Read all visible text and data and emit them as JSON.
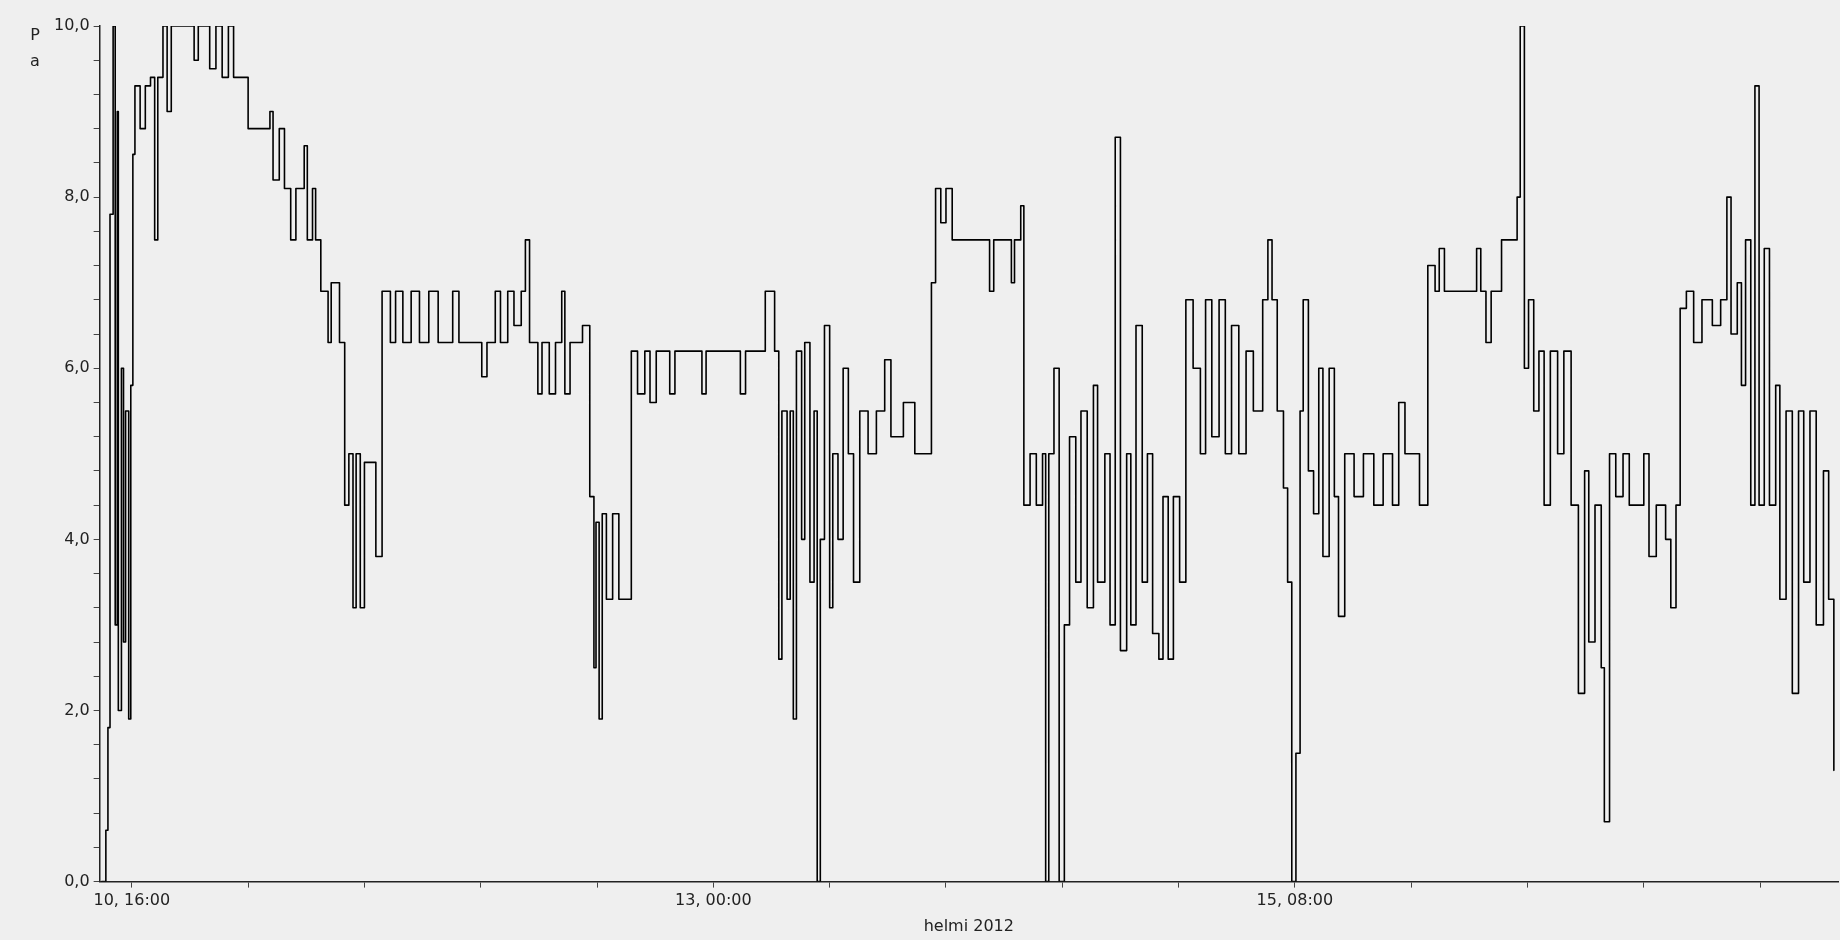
{
  "chart_data": {
    "type": "step",
    "xlabel": "helmi 2012",
    "ylabel": "Pa",
    "xlim": [
      "2012-02-10T12:54",
      "2012-02-17T12:18"
    ],
    "ylim": [
      0,
      10
    ],
    "xticks": [
      {
        "value": "2012-02-10T16:00",
        "label": "10, 16:00"
      },
      {
        "value": "2012-02-11T03:12",
        "label": null
      },
      {
        "value": "2012-02-11T14:24",
        "label": null
      },
      {
        "value": "2012-02-12T01:36",
        "label": null
      },
      {
        "value": "2012-02-12T12:48",
        "label": null
      },
      {
        "value": "2012-02-13T00:00",
        "label": "13, 00:00"
      },
      {
        "value": "2012-02-13T11:12",
        "label": null
      },
      {
        "value": "2012-02-13T22:24",
        "label": null
      },
      {
        "value": "2012-02-14T09:36",
        "label": null
      },
      {
        "value": "2012-02-14T20:48",
        "label": null
      },
      {
        "value": "2012-02-15T08:00",
        "label": "15, 08:00"
      },
      {
        "value": "2012-02-15T19:12",
        "label": null
      },
      {
        "value": "2012-02-16T06:24",
        "label": null
      },
      {
        "value": "2012-02-16T17:36",
        "label": null
      },
      {
        "value": "2012-02-17T04:48",
        "label": null
      }
    ],
    "yticks": [
      {
        "value": 0,
        "label": "0,0"
      },
      {
        "value": 0.4,
        "label": null
      },
      {
        "value": 0.8,
        "label": null
      },
      {
        "value": 1.2,
        "label": null
      },
      {
        "value": 1.6,
        "label": null
      },
      {
        "value": 2,
        "label": "2,0"
      },
      {
        "value": 2.4,
        "label": null
      },
      {
        "value": 2.8,
        "label": null
      },
      {
        "value": 3.2,
        "label": null
      },
      {
        "value": 3.6,
        "label": null
      },
      {
        "value": 4,
        "label": "4,0"
      },
      {
        "value": 4.4,
        "label": null
      },
      {
        "value": 4.8,
        "label": null
      },
      {
        "value": 5.2,
        "label": null
      },
      {
        "value": 5.6,
        "label": null
      },
      {
        "value": 6,
        "label": "6,0"
      },
      {
        "value": 6.4,
        "label": null
      },
      {
        "value": 6.8,
        "label": null
      },
      {
        "value": 7.2,
        "label": null
      },
      {
        "value": 7.6,
        "label": null
      },
      {
        "value": 8,
        "label": "8,0"
      },
      {
        "value": 8.4,
        "label": null
      },
      {
        "value": 8.8,
        "label": null
      },
      {
        "value": 9.2,
        "label": null
      },
      {
        "value": 9.6,
        "label": null
      },
      {
        "value": 10,
        "label": "10,0"
      }
    ],
    "grid": false,
    "legend": false,
    "marker": "none",
    "line_style": "solid",
    "series": [
      {
        "color": "#000000",
        "x": [
          "2012-02-10T13:06",
          "2012-02-10T13:30",
          "2012-02-10T13:42",
          "2012-02-10T13:54",
          "2012-02-10T14:12",
          "2012-02-10T14:24",
          "2012-02-10T14:36",
          "2012-02-10T14:42",
          "2012-02-10T15:00",
          "2012-02-10T15:12",
          "2012-02-10T15:24",
          "2012-02-10T15:42",
          "2012-02-10T15:54",
          "2012-02-10T16:06",
          "2012-02-10T16:18",
          "2012-02-10T16:48",
          "2012-02-10T17:18",
          "2012-02-10T17:48",
          "2012-02-10T18:12",
          "2012-02-10T18:30",
          "2012-02-10T19:00",
          "2012-02-10T19:24",
          "2012-02-10T19:48",
          "2012-02-10T22:00",
          "2012-02-10T22:24",
          "2012-02-10T23:30",
          "2012-02-11T00:06",
          "2012-02-11T00:42",
          "2012-02-11T01:18",
          "2012-02-11T01:48",
          "2012-02-11T03:12",
          "2012-02-11T05:18",
          "2012-02-11T05:36",
          "2012-02-11T06:12",
          "2012-02-11T06:42",
          "2012-02-11T07:18",
          "2012-02-11T07:48",
          "2012-02-11T08:36",
          "2012-02-11T08:54",
          "2012-02-11T09:24",
          "2012-02-11T09:42",
          "2012-02-11T10:12",
          "2012-02-11T10:54",
          "2012-02-11T11:12",
          "2012-02-11T12:00",
          "2012-02-11T12:30",
          "2012-02-11T12:54",
          "2012-02-11T13:18",
          "2012-02-11T13:36",
          "2012-02-11T14:00",
          "2012-02-11T14:24",
          "2012-02-11T15:30",
          "2012-02-11T16:06",
          "2012-02-11T16:54",
          "2012-02-11T17:24",
          "2012-02-11T18:06",
          "2012-02-11T18:54",
          "2012-02-11T19:42",
          "2012-02-11T20:36",
          "2012-02-11T21:30",
          "2012-02-11T22:54",
          "2012-02-11T23:30",
          "2012-02-12T01:42",
          "2012-02-12T02:12",
          "2012-02-12T03:00",
          "2012-02-12T03:30",
          "2012-02-12T04:12",
          "2012-02-12T04:48",
          "2012-02-12T05:30",
          "2012-02-12T05:54",
          "2012-02-12T06:18",
          "2012-02-12T07:06",
          "2012-02-12T07:30",
          "2012-02-12T08:12",
          "2012-02-12T08:48",
          "2012-02-12T09:24",
          "2012-02-12T09:42",
          "2012-02-12T10:12",
          "2012-02-12T11:24",
          "2012-02-12T12:06",
          "2012-02-12T12:30",
          "2012-02-12T12:42",
          "2012-02-12T13:00",
          "2012-02-12T13:18",
          "2012-02-12T13:42",
          "2012-02-12T14:18",
          "2012-02-12T14:54",
          "2012-02-12T15:42",
          "2012-02-12T16:06",
          "2012-02-12T16:42",
          "2012-02-12T17:24",
          "2012-02-12T17:54",
          "2012-02-12T18:30",
          "2012-02-12T19:48",
          "2012-02-12T20:18",
          "2012-02-12T22:24",
          "2012-02-12T22:54",
          "2012-02-12T23:18",
          "2012-02-13T02:36",
          "2012-02-13T03:06",
          "2012-02-13T05:00",
          "2012-02-13T05:54",
          "2012-02-13T06:18",
          "2012-02-13T06:36",
          "2012-02-13T07:06",
          "2012-02-13T07:24",
          "2012-02-13T07:42",
          "2012-02-13T08:00",
          "2012-02-13T08:30",
          "2012-02-13T08:48",
          "2012-02-13T09:18",
          "2012-02-13T09:42",
          "2012-02-13T10:00",
          "2012-02-13T10:18",
          "2012-02-13T10:42",
          "2012-02-13T11:12",
          "2012-02-13T11:30",
          "2012-02-13T12:00",
          "2012-02-13T12:30",
          "2012-02-13T13:00",
          "2012-02-13T13:30",
          "2012-02-13T14:06",
          "2012-02-13T14:54",
          "2012-02-13T15:42",
          "2012-02-13T16:30",
          "2012-02-13T17:06",
          "2012-02-13T18:18",
          "2012-02-13T19:24",
          "2012-02-13T20:36",
          "2012-02-13T21:00",
          "2012-02-13T21:24",
          "2012-02-13T21:54",
          "2012-02-13T22:24",
          "2012-02-13T23:00",
          "2012-02-14T02:18",
          "2012-02-14T02:36",
          "2012-02-14T03:00",
          "2012-02-14T04:18",
          "2012-02-14T04:42",
          "2012-02-14T05:00",
          "2012-02-14T05:36",
          "2012-02-14T05:54",
          "2012-02-14T06:30",
          "2012-02-14T07:06",
          "2012-02-14T07:42",
          "2012-02-14T08:00",
          "2012-02-14T08:18",
          "2012-02-14T08:48",
          "2012-02-14T09:18",
          "2012-02-14T09:48",
          "2012-02-14T10:18",
          "2012-02-14T10:54",
          "2012-02-14T11:24",
          "2012-02-14T12:00",
          "2012-02-14T12:36",
          "2012-02-14T13:00",
          "2012-02-14T13:42",
          "2012-02-14T14:12",
          "2012-02-14T14:42",
          "2012-02-14T15:12",
          "2012-02-14T15:48",
          "2012-02-14T16:12",
          "2012-02-14T16:42",
          "2012-02-14T17:18",
          "2012-02-14T17:48",
          "2012-02-14T18:18",
          "2012-02-14T18:54",
          "2012-02-14T19:18",
          "2012-02-14T19:48",
          "2012-02-14T20:18",
          "2012-02-14T20:54",
          "2012-02-14T21:30",
          "2012-02-14T22:12",
          "2012-02-14T22:54",
          "2012-02-14T23:24",
          "2012-02-15T00:00",
          "2012-02-15T00:42",
          "2012-02-15T01:18",
          "2012-02-15T01:54",
          "2012-02-15T02:36",
          "2012-02-15T03:18",
          "2012-02-15T04:00",
          "2012-02-15T04:54",
          "2012-02-15T05:24",
          "2012-02-15T05:48",
          "2012-02-15T06:18",
          "2012-02-15T06:54",
          "2012-02-15T07:18",
          "2012-02-15T07:42",
          "2012-02-15T08:06",
          "2012-02-15T08:30",
          "2012-02-15T08:48",
          "2012-02-15T09:18",
          "2012-02-15T09:48",
          "2012-02-15T10:18",
          "2012-02-15T10:42",
          "2012-02-15T11:18",
          "2012-02-15T11:48",
          "2012-02-15T12:12",
          "2012-02-15T12:48",
          "2012-02-15T13:42",
          "2012-02-15T14:36",
          "2012-02-15T15:36",
          "2012-02-15T16:30",
          "2012-02-15T17:24",
          "2012-02-15T18:00",
          "2012-02-15T18:36",
          "2012-02-15T20:00",
          "2012-02-15T20:48",
          "2012-02-15T21:30",
          "2012-02-15T21:54",
          "2012-02-15T22:24",
          "2012-02-16T01:30",
          "2012-02-16T01:54",
          "2012-02-16T02:24",
          "2012-02-16T02:54",
          "2012-02-16T03:54",
          "2012-02-16T05:24",
          "2012-02-16T05:42",
          "2012-02-16T06:06",
          "2012-02-16T06:30",
          "2012-02-16T07:00",
          "2012-02-16T07:30",
          "2012-02-16T08:00",
          "2012-02-16T08:36",
          "2012-02-16T09:18",
          "2012-02-16T09:54",
          "2012-02-16T10:36",
          "2012-02-16T11:18",
          "2012-02-16T11:54",
          "2012-02-16T12:18",
          "2012-02-16T12:54",
          "2012-02-16T13:30",
          "2012-02-16T13:48",
          "2012-02-16T14:18",
          "2012-02-16T14:54",
          "2012-02-16T15:36",
          "2012-02-16T16:12",
          "2012-02-16T17:36",
          "2012-02-16T18:06",
          "2012-02-16T18:48",
          "2012-02-16T19:42",
          "2012-02-16T20:12",
          "2012-02-16T20:42",
          "2012-02-16T21:06",
          "2012-02-16T21:42",
          "2012-02-16T22:24",
          "2012-02-16T23:12",
          "2012-02-17T00:12",
          "2012-02-17T01:00",
          "2012-02-17T01:36",
          "2012-02-17T02:00",
          "2012-02-17T02:36",
          "2012-02-17T03:00",
          "2012-02-17T03:24",
          "2012-02-17T03:54",
          "2012-02-17T04:18",
          "2012-02-17T04:42",
          "2012-02-17T05:12",
          "2012-02-17T05:42",
          "2012-02-17T06:18",
          "2012-02-17T06:42",
          "2012-02-17T07:18",
          "2012-02-17T07:54",
          "2012-02-17T08:30",
          "2012-02-17T09:00",
          "2012-02-17T09:36",
          "2012-02-17T10:12",
          "2012-02-17T10:54",
          "2012-02-17T11:24",
          "2012-02-17T11:54"
        ],
        "values": [
          0,
          0.6,
          1.8,
          7.8,
          10,
          3,
          9,
          2,
          6,
          2.8,
          5.5,
          1.9,
          5.8,
          8.5,
          9.3,
          8.8,
          9.3,
          9.4,
          7.5,
          9.4,
          10,
          9.0,
          10,
          9.6,
          10,
          9.5,
          10,
          9.4,
          10,
          9.4,
          8.8,
          9.0,
          8.2,
          8.8,
          8.1,
          7.5,
          8.1,
          8.6,
          7.5,
          8.1,
          7.5,
          6.9,
          6.3,
          7.0,
          6.3,
          4.4,
          5.0,
          3.2,
          5.0,
          3.2,
          4.9,
          3.8,
          6.9,
          6.3,
          6.9,
          6.3,
          6.9,
          6.3,
          6.9,
          6.3,
          6.9,
          6.3,
          5.9,
          6.3,
          6.9,
          6.3,
          6.9,
          6.5,
          6.9,
          7.5,
          6.3,
          5.7,
          6.3,
          5.7,
          6.3,
          6.9,
          5.7,
          6.3,
          6.5,
          4.5,
          2.5,
          4.2,
          1.9,
          4.3,
          3.3,
          4.3,
          3.3,
          3.3,
          6.2,
          5.7,
          6.2,
          5.6,
          6.2,
          5.7,
          6.2,
          6.2,
          5.7,
          6.2,
          5.7,
          6.2,
          6.9,
          6.2,
          2.6,
          5.5,
          3.3,
          5.5,
          1.9,
          6.2,
          4.0,
          6.3,
          3.5,
          5.5,
          0,
          4.0,
          6.5,
          3.2,
          5.0,
          4.0,
          6.0,
          5.0,
          3.5,
          5.5,
          5.0,
          5.5,
          6.1,
          5.2,
          5.6,
          5.0,
          5.0,
          7.0,
          8.1,
          7.7,
          8.1,
          7.5,
          7.5,
          6.9,
          7.5,
          7.5,
          7.0,
          7.5,
          7.9,
          4.4,
          5.0,
          4.4,
          5.0,
          0,
          5.0,
          6.0,
          0,
          3.0,
          5.2,
          3.5,
          5.5,
          3.2,
          5.8,
          3.5,
          5.0,
          3.0,
          8.7,
          2.7,
          5.0,
          3.0,
          6.5,
          3.5,
          5.0,
          2.9,
          2.6,
          4.5,
          2.6,
          4.5,
          3.5,
          6.8,
          6.0,
          5.0,
          6.8,
          5.2,
          6.8,
          5.0,
          6.5,
          5.0,
          6.2,
          5.5,
          6.8,
          7.5,
          6.8,
          5.5,
          4.6,
          3.5,
          0,
          1.5,
          5.5,
          6.8,
          4.8,
          4.3,
          6.0,
          3.8,
          6.0,
          4.5,
          3.1,
          5.0,
          4.5,
          5.0,
          4.4,
          5.0,
          4.4,
          5.6,
          5.0,
          4.4,
          7.2,
          6.9,
          7.4,
          6.9,
          7.4,
          6.9,
          6.3,
          6.9,
          7.5,
          8.0,
          10,
          6.0,
          6.8,
          5.5,
          6.2,
          4.4,
          6.2,
          5.0,
          6.2,
          4.4,
          2.2,
          4.8,
          2.8,
          4.4,
          2.5,
          0.7,
          5.0,
          4.5,
          5.0,
          4.4,
          5.0,
          3.8,
          4.4,
          4.0,
          3.2,
          4.4,
          6.7,
          6.9,
          6.3,
          6.8,
          6.5,
          6.8,
          8.0,
          6.4,
          7.0,
          5.8,
          7.5,
          4.4,
          9.3,
          4.4,
          7.4,
          4.4,
          5.8,
          3.3,
          5.5,
          2.2,
          5.5,
          3.5,
          5.5,
          3.0,
          4.8,
          3.3,
          1.3
        ]
      }
    ]
  }
}
